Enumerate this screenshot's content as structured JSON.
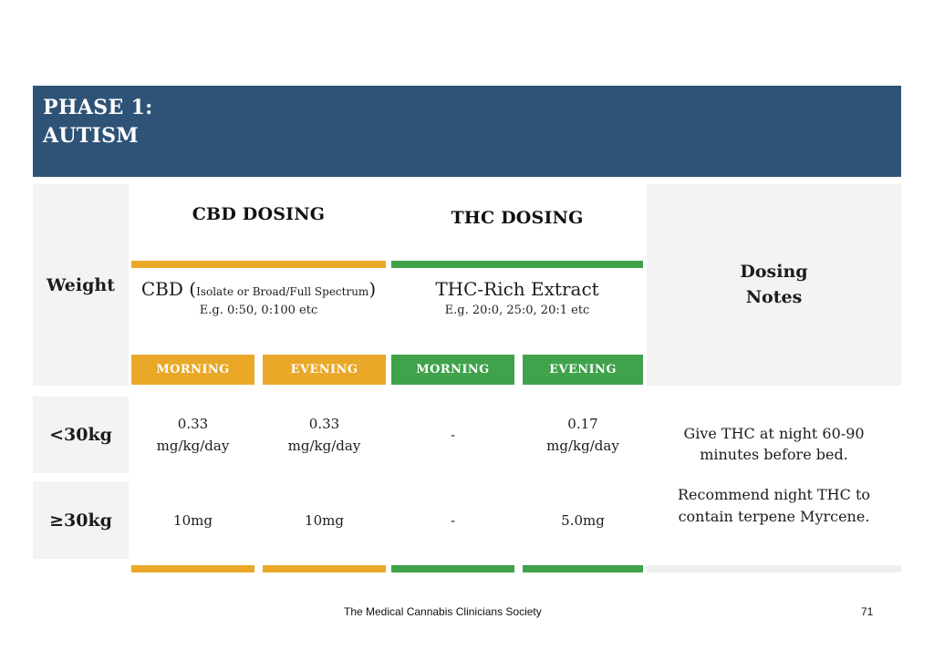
{
  "header": {
    "title_line1": "PHASE 1:",
    "title_line2": "AUTISM"
  },
  "colors": {
    "header_bg": "#2E5377",
    "cbd_accent": "#EAA829",
    "thc_accent": "#40A24A",
    "cell_bg": "#F3F3F3",
    "strip_gray": "#EFEFEF"
  },
  "table": {
    "weight_header": "Weight",
    "notes_header": "Dosing\nNotes",
    "cbd": {
      "title": "CBD DOSING",
      "product_prefix": "CBD (",
      "product_inner": "Isolate or Broad/Full Spectrum",
      "product_suffix": ")",
      "example": "E.g. 0:50, 0:100 etc",
      "morning": "MORNING",
      "evening": "EVENING"
    },
    "thc": {
      "title": "THC DOSING",
      "product": "THC-Rich Extract",
      "example": "E.g. 20:0, 25:0, 20:1 etc",
      "morning": "MORNING",
      "evening": "EVENING"
    },
    "rows": [
      {
        "weight": "<30kg",
        "cbd_morning": "0.33\nmg/kg/day",
        "cbd_evening": "0.33\nmg/kg/day",
        "thc_morning": "-",
        "thc_evening": "0.17\nmg/kg/day"
      },
      {
        "weight": "≥30kg",
        "cbd_morning": "10mg",
        "cbd_evening": "10mg",
        "thc_morning": "-",
        "thc_evening": "5.0mg"
      }
    ],
    "notes": [
      "Give THC at night 60-90 minutes before bed.",
      "Recommend night THC to contain terpene Myrcene."
    ]
  },
  "footer": {
    "organization": "The Medical Cannabis Clinicians Society",
    "page_number": "71"
  }
}
